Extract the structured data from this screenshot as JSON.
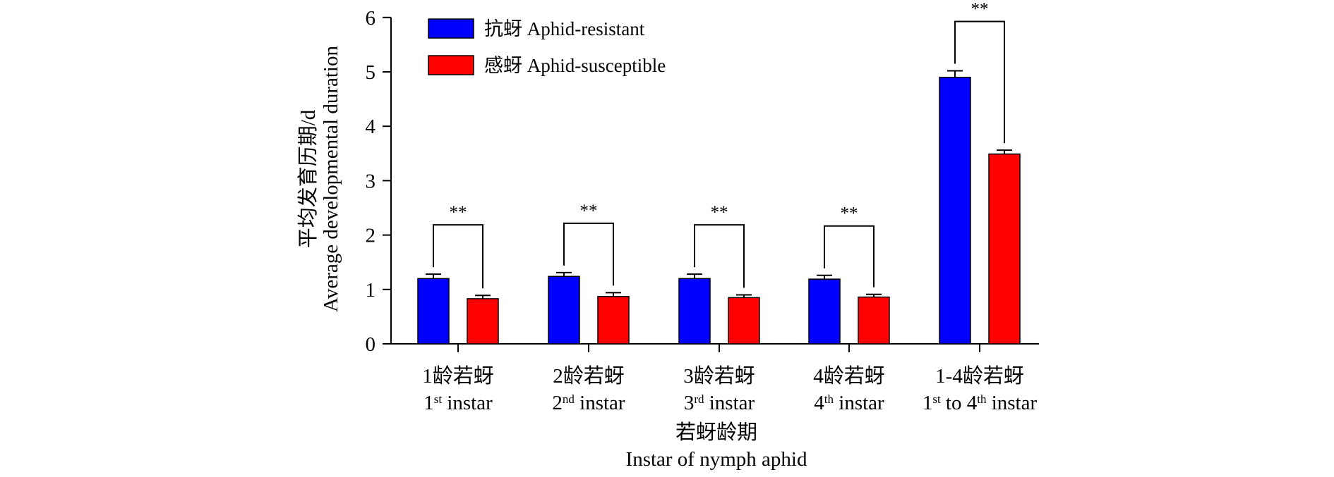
{
  "chart_data": {
    "type": "bar",
    "categories": [
      {
        "line1": "1龄若蚜",
        "ord_num": "1",
        "ord_sup": "st",
        "ord_rest": " instar",
        "ord2_num": "",
        "ord2_sup": "",
        "ord2_rest": ""
      },
      {
        "line1": "2龄若蚜",
        "ord_num": "2",
        "ord_sup": "nd",
        "ord_rest": " instar",
        "ord2_num": "",
        "ord2_sup": "",
        "ord2_rest": ""
      },
      {
        "line1": "3龄若蚜",
        "ord_num": "3",
        "ord_sup": "rd",
        "ord_rest": " instar",
        "ord2_num": "",
        "ord2_sup": "",
        "ord2_rest": ""
      },
      {
        "line1": "4龄若蚜",
        "ord_num": "4",
        "ord_sup": "th",
        "ord_rest": " instar",
        "ord2_num": "",
        "ord2_sup": "",
        "ord2_rest": ""
      },
      {
        "line1": "1-4龄若蚜",
        "ord_num": "1",
        "ord_sup": "st",
        "ord_rest": " to ",
        "ord2_num": "4",
        "ord2_sup": "th",
        "ord2_rest": " instar"
      }
    ],
    "series": [
      {
        "name": "抗蚜 Aphid-resistant",
        "color": "#0000ff",
        "values": [
          1.2,
          1.24,
          1.2,
          1.19,
          4.9
        ],
        "errors": [
          0.08,
          0.07,
          0.08,
          0.07,
          0.12
        ]
      },
      {
        "name": "感蚜 Aphid-susceptible",
        "color": "#ff0000",
        "values": [
          0.83,
          0.87,
          0.85,
          0.86,
          3.49
        ],
        "errors": [
          0.06,
          0.07,
          0.05,
          0.05,
          0.07
        ]
      }
    ],
    "significance": [
      "**",
      "**",
      "**",
      "**",
      "**"
    ],
    "ylim": [
      0,
      6
    ],
    "yticks": [
      "0",
      "1",
      "2",
      "3",
      "4",
      "5",
      "6"
    ],
    "ylabel_cn": "平均发育历期/d",
    "ylabel_en": "Average developmental duration",
    "xlabel_cn": "若蚜龄期",
    "xlabel_en": "Instar of nymph aphid",
    "legend_position": "top-left",
    "grid": false
  }
}
